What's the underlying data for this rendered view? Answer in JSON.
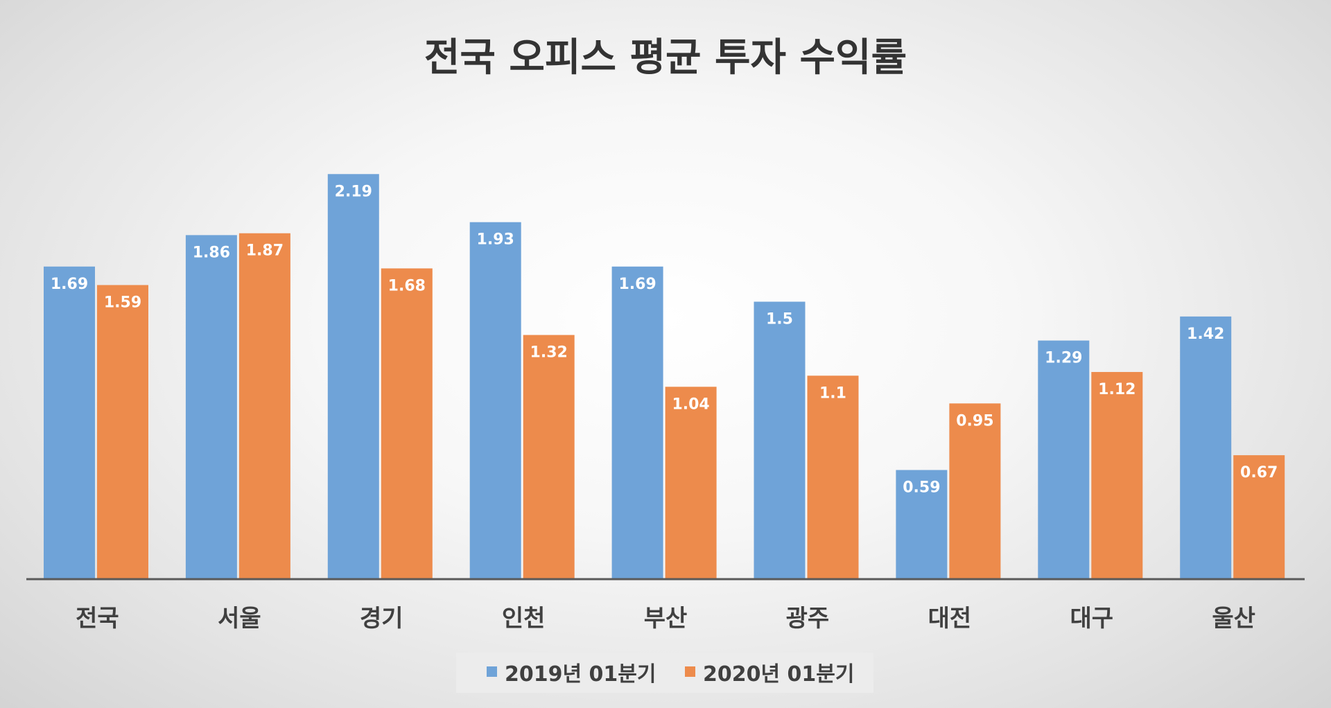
{
  "chart_data": {
    "type": "bar",
    "title": "전국 오피스 평균 투자 수익률",
    "categories": [
      "전국",
      "서울",
      "경기",
      "인천",
      "부산",
      "광주",
      "대전",
      "대구",
      "울산"
    ],
    "series": [
      {
        "name": "2019년 01분기",
        "color": "#6fa3d8",
        "values": [
          1.69,
          1.86,
          2.19,
          1.93,
          1.69,
          1.5,
          0.59,
          1.29,
          1.42
        ],
        "labels": [
          "1.69",
          "1.86",
          "2.19",
          "1.93",
          "1.69",
          "1.5",
          "0.59",
          "1.29",
          "1.42"
        ]
      },
      {
        "name": "2020년 01분기",
        "color": "#ed8b4c",
        "values": [
          1.59,
          1.87,
          1.68,
          1.32,
          1.04,
          1.1,
          0.95,
          1.12,
          0.67
        ],
        "labels": [
          "1.59",
          "1.87",
          "1.68",
          "1.32",
          "1.04",
          "1.1",
          "0.95",
          "1.12",
          "0.67"
        ]
      }
    ],
    "ylim": [
      0,
      2.2
    ],
    "grid": false,
    "legend": "bottom-center",
    "axis_color": "#595959"
  }
}
